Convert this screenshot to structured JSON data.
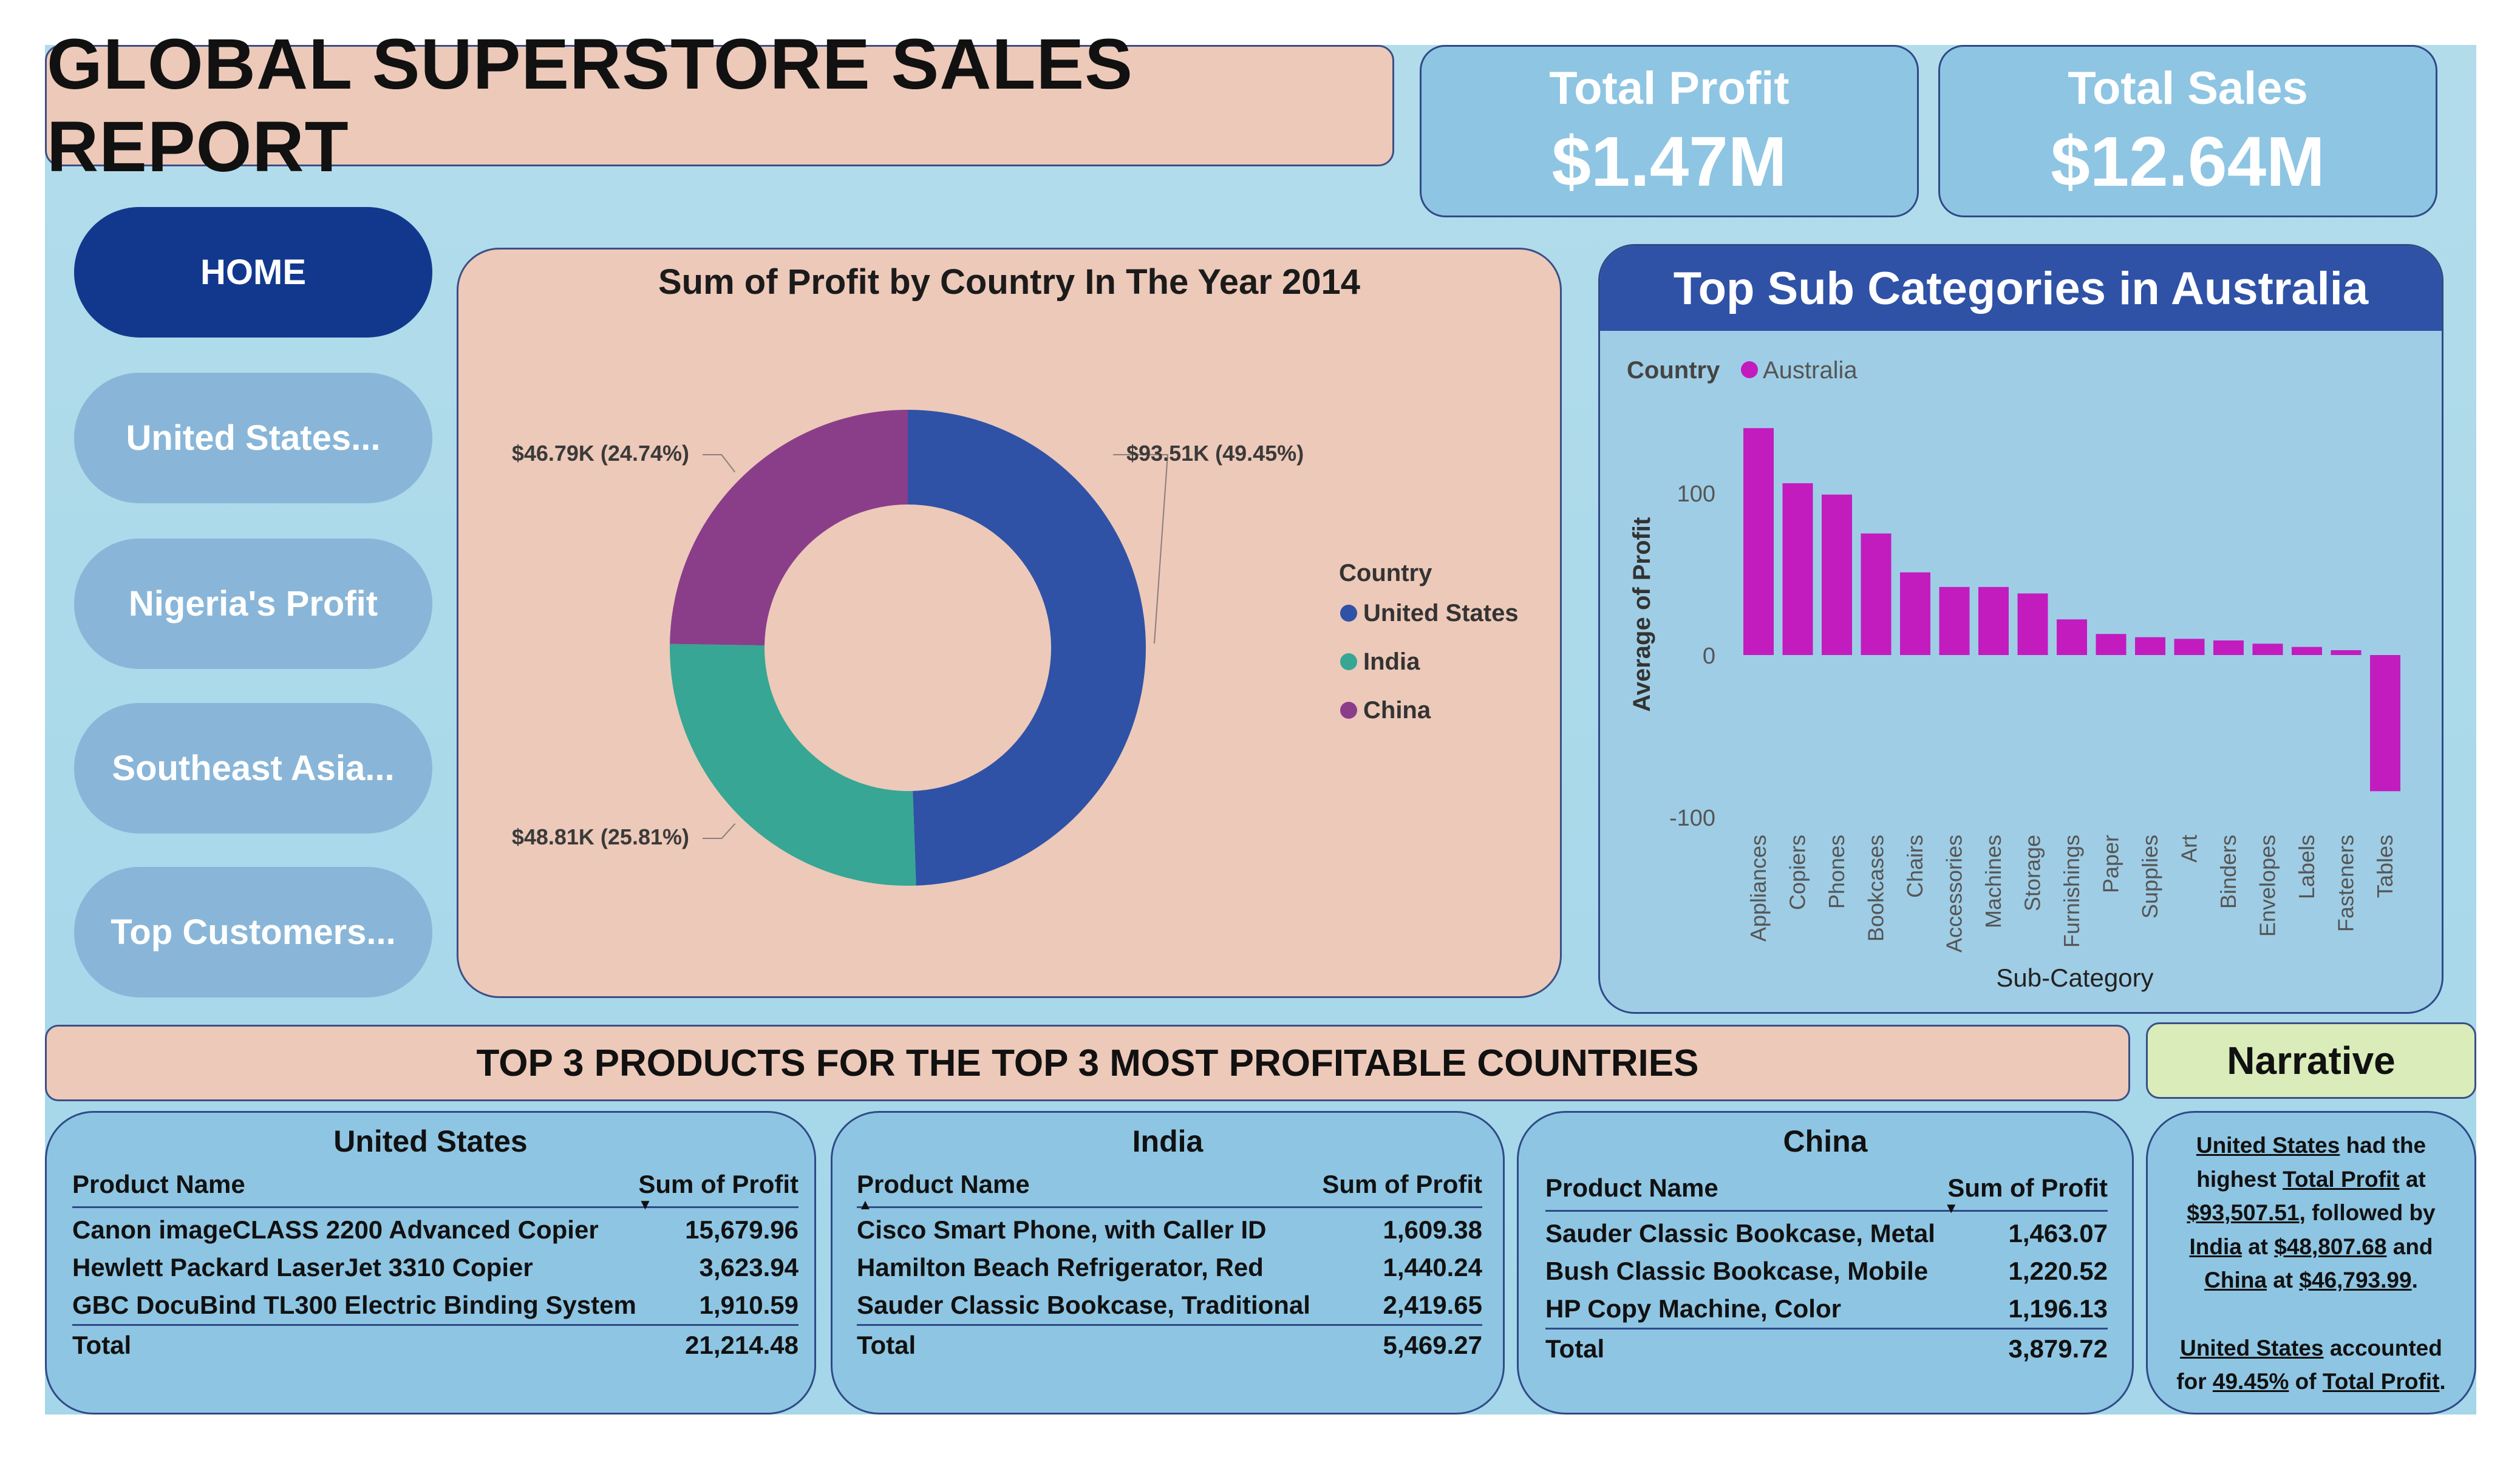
{
  "header": {
    "title": "GLOBAL SUPERSTORE SALES REPORT"
  },
  "kpis": {
    "profit": {
      "label": "Total Profit",
      "value": "$1.47M"
    },
    "sales": {
      "label": "Total Sales",
      "value": "$12.64M"
    }
  },
  "nav": [
    {
      "label": "HOME",
      "active": true
    },
    {
      "label": "United States...",
      "active": false
    },
    {
      "label": "Nigeria's Profit",
      "active": false
    },
    {
      "label": "Southeast Asia...",
      "active": false
    },
    {
      "label": "Top Customers...",
      "active": false
    }
  ],
  "donut": {
    "title": "Sum of Profit by Country In The Year 2014",
    "legend_title": "Country",
    "legend": [
      "United States",
      "India",
      "China"
    ]
  },
  "bar_panel": {
    "header": "Top Sub Categories in Australia",
    "legend_label": "Country",
    "legend_item": "Australia",
    "y_label": "Average of Profit",
    "x_label": "Sub-Category"
  },
  "chart_data": [
    {
      "type": "pie",
      "variant": "donut",
      "title": "Sum of Profit by Country In The Year 2014",
      "legend_title": "Country",
      "legend_position": "right",
      "slices": [
        {
          "label": "United States",
          "value": 93.51,
          "pct": 49.45,
          "data_label": "$93.51K (49.45%)",
          "color": "#2f52a7"
        },
        {
          "label": "India",
          "value": 48.81,
          "pct": 25.81,
          "data_label": "$48.81K (25.81%)",
          "color": "#37a694"
        },
        {
          "label": "China",
          "value": 46.79,
          "pct": 24.74,
          "data_label": "$46.79K (24.74%)",
          "color": "#8a3e8a"
        }
      ]
    },
    {
      "type": "bar",
      "title": "Top Sub Categories in Australia",
      "xlabel": "Sub-Category",
      "ylabel": "Average of Profit",
      "series": [
        {
          "name": "Australia",
          "color": "#c21cbf",
          "values": [
            140,
            106,
            99,
            75,
            51,
            42,
            42,
            38,
            22,
            13,
            11,
            10,
            9,
            7,
            5,
            3,
            -84
          ]
        }
      ],
      "categories": [
        "Appliances",
        "Copiers",
        "Phones",
        "Bookcases",
        "Chairs",
        "Accessories",
        "Machines",
        "Storage",
        "Furnishings",
        "Paper",
        "Supplies",
        "Art",
        "Binders",
        "Envelopes",
        "Labels",
        "Fasteners",
        "Tables"
      ],
      "yticks": [
        -100,
        0,
        100
      ],
      "ylim": [
        -110,
        150
      ],
      "grid": false,
      "legend_position": "top-left"
    }
  ],
  "products": {
    "banner": "TOP 3 PRODUCTS FOR THE TOP 3 MOST PROFITABLE COUNTRIES",
    "col_product": "Product Name",
    "col_profit": "Sum of Profit",
    "total_label": "Total",
    "tables": [
      {
        "country": "United States",
        "rows": [
          {
            "name": "Canon imageCLASS 2200 Advanced Copier",
            "profit": "15,679.96"
          },
          {
            "name": "Hewlett Packard LaserJet 3310 Copier",
            "profit": "3,623.94"
          },
          {
            "name": "GBC DocuBind TL300 Electric Binding System",
            "profit": "1,910.59"
          }
        ],
        "total": "21,214.48"
      },
      {
        "country": "India",
        "rows": [
          {
            "name": "Cisco Smart Phone, with Caller ID",
            "profit": "1,609.38"
          },
          {
            "name": "Hamilton Beach Refrigerator, Red",
            "profit": "1,440.24"
          },
          {
            "name": "Sauder Classic Bookcase, Traditional",
            "profit": "2,419.65"
          }
        ],
        "total": "5,469.27"
      },
      {
        "country": "China",
        "rows": [
          {
            "name": "Sauder Classic Bookcase, Metal",
            "profit": "1,463.07"
          },
          {
            "name": "Bush Classic Bookcase, Mobile",
            "profit": "1,220.52"
          },
          {
            "name": "HP Copy Machine, Color",
            "profit": "1,196.13"
          }
        ],
        "total": "3,879.72"
      }
    ]
  },
  "narrative": {
    "title": "Narrative",
    "p1": [
      "United States",
      " had the highest ",
      "Total Profit",
      " at ",
      "$93,507.51",
      ", followed by ",
      "India",
      " at ",
      "$48,807.68",
      " and ",
      "China",
      " at ",
      "$46,793.99",
      "."
    ],
    "p2": [
      "United States",
      " accounted for ",
      "49.45%",
      " of ",
      "Total Profit",
      "."
    ]
  },
  "colors": {
    "background": "#a9d9ea",
    "peach": "#edc9b9",
    "navy": "#12388e",
    "blue_panel": "#8ec5e3",
    "magenta": "#c21cbf"
  }
}
